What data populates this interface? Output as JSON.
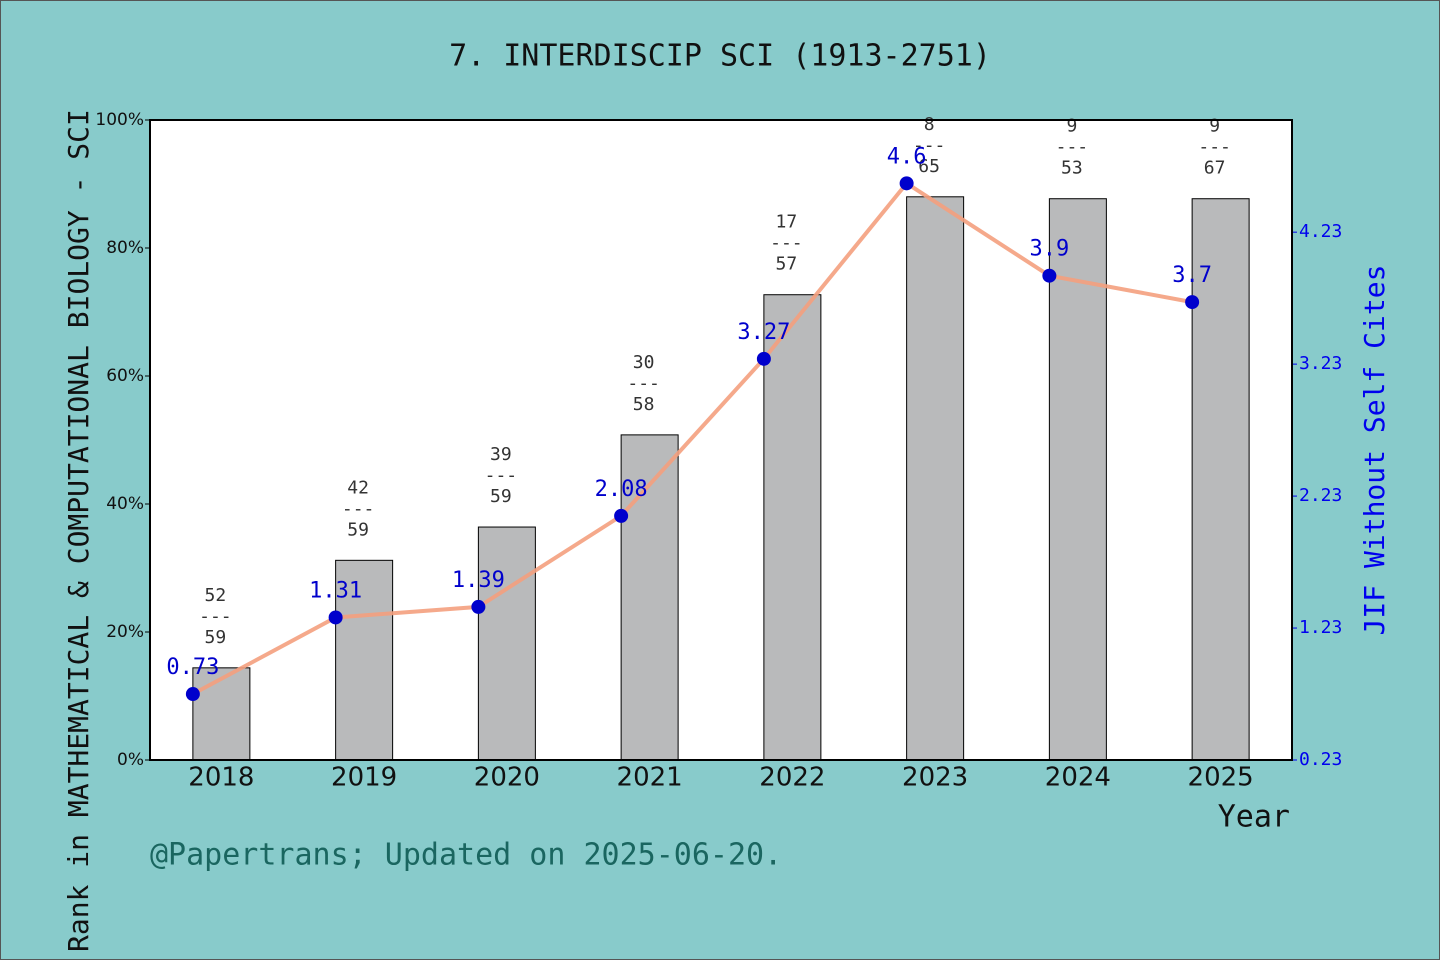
{
  "chart_data": {
    "type": "combo",
    "title": "7. INTERDISCIP SCI (1913-2751)",
    "ylabel": "Rank in MATHEMATICAL & COMPUTATIONAL BIOLOGY - SCI",
    "y2label": "JIF Without Self Cites",
    "xlabel": "Year",
    "footer": "@Papertrans; Updated on 2025-06-20.",
    "categories": [
      "2018",
      "2019",
      "2020",
      "2021",
      "2022",
      "2023",
      "2024",
      "2025"
    ],
    "series": [
      {
        "type": "bar",
        "color": "#b9babb",
        "values": [
          14.4,
          31.2,
          36.4,
          50.8,
          72.7,
          88.0,
          87.7,
          87.7
        ],
        "rank_labels": [
          [
            "52",
            "---",
            "59"
          ],
          [
            "42",
            "---",
            "59"
          ],
          [
            "39",
            "---",
            "59"
          ],
          [
            "30",
            "---",
            "58"
          ],
          [
            "17",
            "---",
            "57"
          ],
          [
            "8",
            "---",
            "65"
          ],
          [
            "9",
            "---",
            "53"
          ],
          [
            "9",
            "---",
            "67"
          ]
        ]
      },
      {
        "type": "line",
        "axis": "y2",
        "color": "#f4a07e",
        "marker_color": "#0000cc",
        "values": [
          0.73,
          1.31,
          1.39,
          2.08,
          3.27,
          4.6,
          3.9,
          3.7
        ]
      }
    ],
    "ylim": [
      0,
      100
    ],
    "yticks": [
      {
        "value": 0,
        "label": "0%"
      },
      {
        "value": 20,
        "label": "20%"
      },
      {
        "value": 40,
        "label": "40%"
      },
      {
        "value": 60,
        "label": "60%"
      },
      {
        "value": 80,
        "label": "80%"
      },
      {
        "value": 100,
        "label": "100%"
      }
    ],
    "y2lim": [
      0.23,
      5.08
    ],
    "y2ticks": [
      0.23,
      1.23,
      2.23,
      3.23,
      4.23
    ]
  }
}
